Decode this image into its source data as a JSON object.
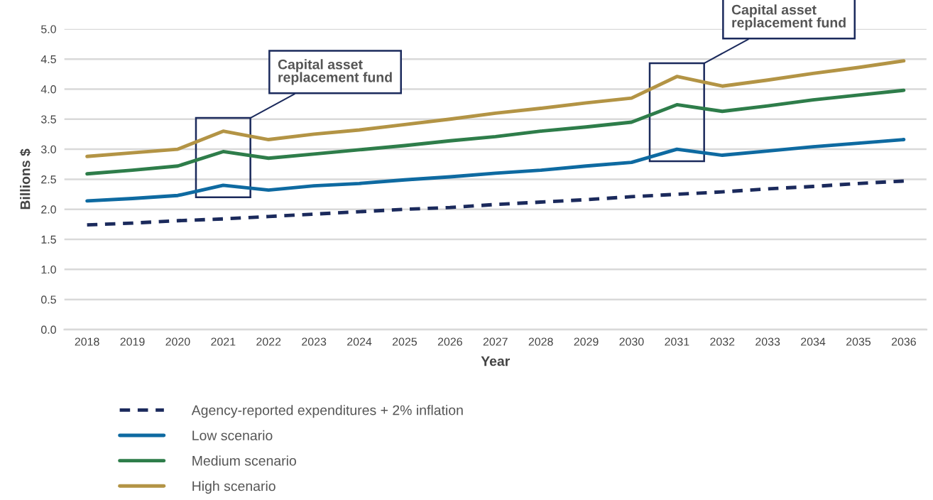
{
  "chart_data": {
    "type": "line",
    "xlabel": "Year",
    "ylabel": "Billions $",
    "categories": [
      "2018",
      "2019",
      "2020",
      "2021",
      "2022",
      "2023",
      "2024",
      "2025",
      "2026",
      "2027",
      "2028",
      "2029",
      "2030",
      "2031",
      "2032",
      "2033",
      "2034",
      "2035",
      "2036"
    ],
    "ylim": [
      0,
      5.0
    ],
    "yticks": [
      {
        "value": 0,
        "label": "0.0"
      },
      0.5,
      {
        "value": 1,
        "label": "1.0"
      },
      1.5,
      {
        "value": 2,
        "label": "2.0"
      },
      2.5,
      {
        "value": 3,
        "label": "3.0"
      },
      3.5,
      {
        "value": 4,
        "label": "4.0"
      },
      4.5,
      {
        "value": 5,
        "label": "5.0"
      }
    ],
    "grid": "y",
    "legend": "bottom",
    "series": [
      {
        "name": "Agency-reported expenditures + 2% inflation",
        "color": "#1b2a5c",
        "line_style": "dashed",
        "values": [
          1.74,
          1.77,
          1.81,
          1.84,
          1.88,
          1.92,
          1.96,
          2.0,
          2.03,
          2.08,
          2.12,
          2.16,
          2.21,
          2.25,
          2.29,
          2.34,
          2.38,
          2.43,
          2.47
        ]
      },
      {
        "name": "Low scenario",
        "color": "#0e6aa1",
        "values": [
          2.14,
          2.18,
          2.23,
          2.4,
          2.32,
          2.39,
          2.43,
          2.49,
          2.54,
          2.6,
          2.65,
          2.72,
          2.78,
          3.0,
          2.9,
          2.97,
          3.04,
          3.1,
          3.16
        ]
      },
      {
        "name": "Medium scenario",
        "color": "#2e7d4a",
        "values": [
          2.59,
          2.65,
          2.72,
          2.96,
          2.85,
          2.92,
          2.99,
          3.06,
          3.14,
          3.21,
          3.3,
          3.37,
          3.45,
          3.74,
          3.63,
          3.72,
          3.82,
          3.9,
          3.98
        ]
      },
      {
        "name": "High scenario",
        "color": "#b39445",
        "values": [
          2.88,
          2.94,
          3.0,
          3.3,
          3.16,
          3.25,
          3.32,
          3.41,
          3.5,
          3.6,
          3.68,
          3.77,
          3.85,
          4.21,
          4.05,
          4.15,
          4.26,
          4.36,
          4.47
        ]
      }
    ],
    "annotations": [
      "Capital asset\nreplacement fund",
      "Capital asset\nreplacement fund"
    ]
  }
}
